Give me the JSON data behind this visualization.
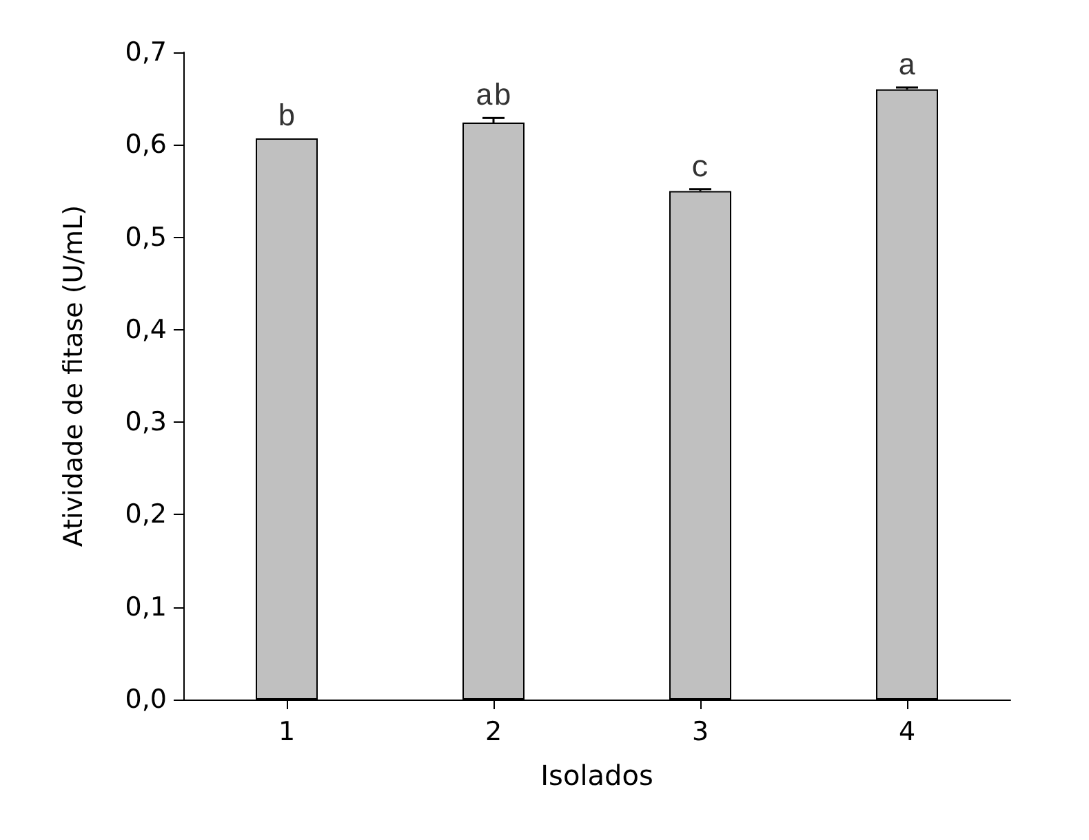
{
  "chart_data": {
    "type": "bar",
    "xlabel": "Isolados",
    "ylabel": "Atividade de fitase (U/mL)",
    "categories": [
      "1",
      "2",
      "3",
      "4"
    ],
    "values": [
      0.607,
      0.624,
      0.55,
      0.66
    ],
    "errors": [
      null,
      0.005,
      0.002,
      0.002
    ],
    "color": "#c0c0c0",
    "ylim": [
      0,
      0.7
    ],
    "yticks": [
      {
        "value": 0,
        "label": "0,0"
      },
      {
        "value": 0.1,
        "label": "0,1"
      },
      {
        "value": 0.2,
        "label": "0,2"
      },
      {
        "value": 0.3,
        "label": "0,3"
      },
      {
        "value": 0.4,
        "label": "0,4"
      },
      {
        "value": 0.5,
        "label": "0,5"
      },
      {
        "value": 0.6,
        "label": "0,6"
      },
      {
        "value": 0.7,
        "label": "0,7"
      }
    ],
    "annotations": [
      {
        "text": "b",
        "x": "1",
        "y": 0.607
      },
      {
        "text": "ab",
        "x": "2",
        "y": 0.629
      },
      {
        "text": "c",
        "x": "3",
        "y": 0.552
      },
      {
        "text": "a",
        "x": "4",
        "y": 0.662
      }
    ],
    "grid": false
  }
}
